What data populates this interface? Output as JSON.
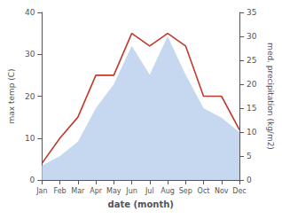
{
  "chart_data": {
    "type": "line",
    "xlabel": "date (month)",
    "ylabel": "max temp (C)",
    "y2label": "med. precipitation (kg/m2)",
    "categories": [
      "Jan",
      "Feb",
      "Mar",
      "Apr",
      "May",
      "Jun",
      "Jul",
      "Aug",
      "Sep",
      "Oct",
      "Nov",
      "Dec"
    ],
    "series": [
      {
        "type": "area",
        "color": "#c5d8f0",
        "axis": "y2",
        "values": [
          3,
          5,
          8,
          15,
          20,
          28,
          22,
          30,
          22,
          15,
          13,
          10
        ]
      },
      {
        "type": "line",
        "color": "#c0392b",
        "values": [
          4,
          10,
          15,
          25,
          25,
          35,
          32,
          35,
          32,
          20,
          20,
          12
        ]
      }
    ],
    "ylim": [
      0,
      40
    ],
    "yticks": [
      0,
      10,
      20,
      30,
      40
    ],
    "y2lim": [
      0,
      35
    ],
    "y2ticks": [
      0,
      5,
      10,
      15,
      20,
      25,
      30,
      35
    ],
    "grid": false
  }
}
